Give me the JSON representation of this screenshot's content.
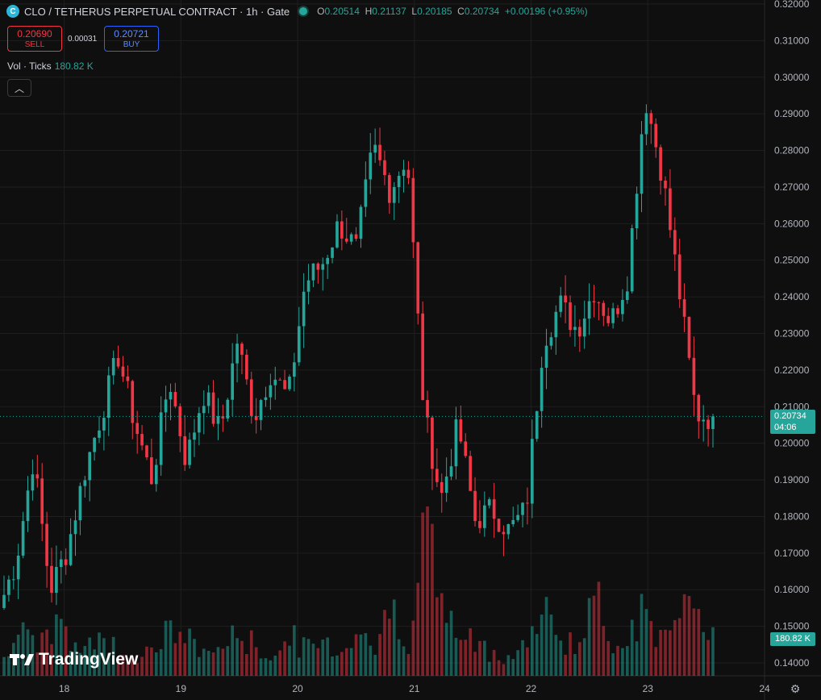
{
  "legend": {
    "symbol_initial": "C",
    "title": "CLO / TETHERUS PERPETUAL CONTRACT · 1h · Gate",
    "open_key": "O",
    "open": "0.20514",
    "high_key": "H",
    "high": "0.21137",
    "low_key": "L",
    "low": "0.20185",
    "close_key": "C",
    "close": "0.20734",
    "change": "+0.00196 (+0.95%)"
  },
  "trade": {
    "sell_price": "0.20690",
    "sell_label": "SELL",
    "spread": "0.00031",
    "buy_price": "0.20721",
    "buy_label": "BUY"
  },
  "volume_legend": {
    "label": "Vol · Ticks",
    "value": "180.82 K"
  },
  "price_tag": {
    "price": "0.20734",
    "countdown": "04:06"
  },
  "volume_tag": "180.82 K",
  "brand": "TradingView",
  "colors": {
    "up": "#26a69a",
    "down": "#f23645",
    "background": "#0f0f0f",
    "grid": "#1f1f1f"
  },
  "chart_data": {
    "type": "candlestick",
    "y_axis_labels": [
      "0.32000",
      "0.31000",
      "0.30000",
      "0.29000",
      "0.28000",
      "0.27000",
      "0.26000",
      "0.25000",
      "0.24000",
      "0.23000",
      "0.22000",
      "0.21000",
      "0.20000",
      "0.19000",
      "0.18000",
      "0.17000",
      "0.16000",
      "0.15000",
      "0.14000"
    ],
    "ylim": [
      0.14,
      0.32
    ],
    "x_axis_labels": [
      {
        "label": "18",
        "x": 18
      },
      {
        "label": "19",
        "x": 19
      },
      {
        "label": "20",
        "x": 20
      },
      {
        "label": "21",
        "x": 21
      },
      {
        "label": "22",
        "x": 22
      },
      {
        "label": "23",
        "x": 23
      },
      {
        "label": "24",
        "x": 24
      }
    ],
    "xlim": [
      17.45,
      24.0
    ],
    "last_price": 0.20734,
    "anchors": [
      0.155,
      0.168,
      0.196,
      0.16,
      0.171,
      0.192,
      0.208,
      0.224,
      0.205,
      0.19,
      0.218,
      0.195,
      0.214,
      0.203,
      0.228,
      0.207,
      0.22,
      0.212,
      0.244,
      0.249,
      0.26,
      0.253,
      0.281,
      0.269,
      0.279,
      0.208,
      0.185,
      0.205,
      0.179,
      0.182,
      0.176,
      0.182,
      0.228,
      0.238,
      0.231,
      0.242,
      0.233,
      0.246,
      0.295,
      0.274,
      0.242,
      0.208,
      0.207
    ],
    "vol_anchors": [
      8,
      11,
      6,
      15,
      7,
      10,
      9,
      6,
      5,
      8,
      12,
      9,
      6,
      8,
      11,
      7,
      5,
      10,
      7,
      9,
      6,
      14,
      7,
      18,
      10,
      40,
      17,
      10,
      8,
      6,
      5,
      9,
      16,
      11,
      7,
      20,
      8,
      13,
      16,
      10,
      11,
      24,
      10
    ],
    "vol_max": 40
  }
}
